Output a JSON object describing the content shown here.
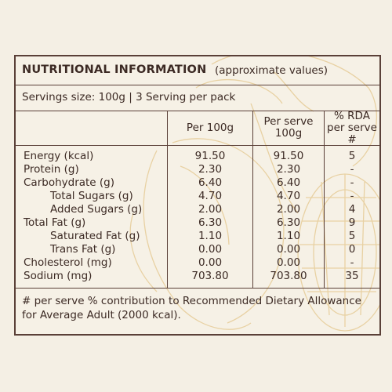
{
  "panel": {
    "title": "NUTRITIONAL INFORMATION",
    "subtitle": "(approximate values)",
    "servings": "Servings size: 100g | 3 Serving per pack"
  },
  "columns": {
    "per100g": "Per 100g",
    "perServe_line1": "Per serve",
    "perServe_line2": "100g",
    "rda_line1": "% RDA",
    "rda_line2": "per serve #"
  },
  "rows": [
    {
      "label": "Energy (kcal)",
      "per100g": "91.50",
      "perServe": "91.50",
      "rda": "5"
    },
    {
      "label": "Protein (g)",
      "per100g": "2.30",
      "perServe": "2.30",
      "rda": "-"
    },
    {
      "label": "Carbohydrate (g)",
      "per100g": "6.40",
      "perServe": "6.40",
      "rda": "-"
    },
    {
      "label": "Total Sugars (g)",
      "per100g": "4.70",
      "perServe": "4.70",
      "rda": "-"
    },
    {
      "label": "Added Sugars (g)",
      "per100g": "2.00",
      "perServe": "2.00",
      "rda": "4"
    },
    {
      "label": "Total Fat (g)",
      "per100g": "6.30",
      "perServe": "6.30",
      "rda": "9"
    },
    {
      "label": "Saturated Fat (g)",
      "per100g": "1.10",
      "perServe": "1.10",
      "rda": "5"
    },
    {
      "label": "Trans Fat (g)",
      "per100g": "0.00",
      "perServe": "0.00",
      "rda": "0"
    },
    {
      "label": "Cholesterol (mg)",
      "per100g": "0.00",
      "perServe": "0.00",
      "rda": "-"
    },
    {
      "label": "Sodium (mg)",
      "per100g": "703.80",
      "perServe": "703.80",
      "rda": "35"
    }
  ],
  "footnote": "# per serve % contribution to Recommended Dietary Allowance for Average Adult (2000 kcal).",
  "colors": {
    "background": "#f4efe4",
    "border": "#5a4038",
    "text": "#3c2a24",
    "watermark": "#e8cf9e"
  }
}
